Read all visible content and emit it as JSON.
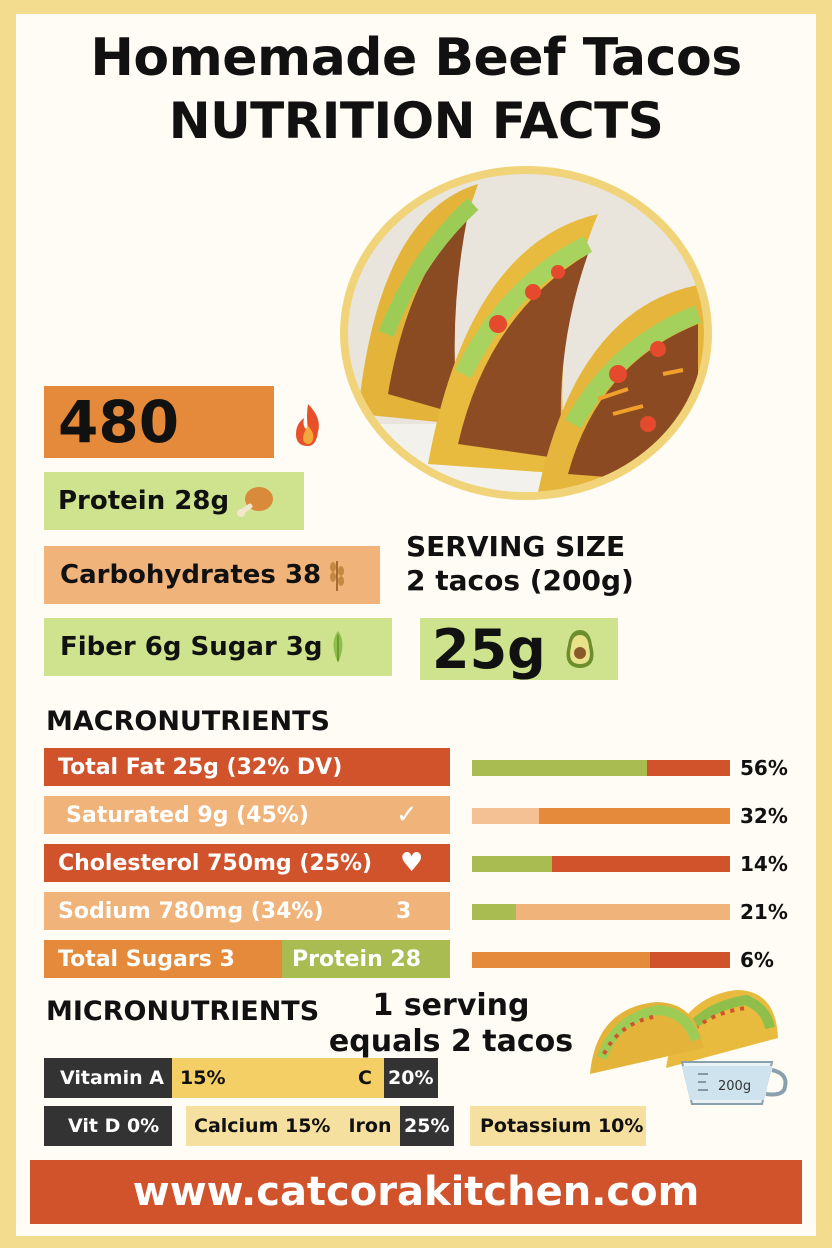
{
  "title": {
    "line1": "Homemade Beef Tacos",
    "line2": "NUTRITION FACTS"
  },
  "calories": {
    "value": "480",
    "icon": "flame-icon"
  },
  "protein": {
    "label": "Protein 28g",
    "icon": "drumstick-icon"
  },
  "carbs": {
    "label": "Carbohydrates 38",
    "icon": "wheat-icon"
  },
  "fiber": {
    "label": "Fiber 6g Sugar 3g",
    "icon": "leaf-icon"
  },
  "serving": {
    "heading": "SERVING SIZE",
    "value": "2 tacos (200g)"
  },
  "fat": {
    "value": "25g",
    "icon": "avocado-icon"
  },
  "macros": {
    "heading": "MACRONUTRIENTS",
    "rows": [
      {
        "label": "Total Fat 25g (32% DV)",
        "mark": "",
        "pct": "56%",
        "fill": 0.68
      },
      {
        "label": "Saturated 9g (45%)",
        "mark": "✓",
        "pct": "32%",
        "fill": 0.26
      },
      {
        "label": "Cholesterol 750mg (25%)",
        "mark": "♥",
        "pct": "14%",
        "fill": 0.31
      },
      {
        "label": "Sodium 780mg (34%)",
        "mark": "3",
        "pct": "21%",
        "fill": 0.17
      },
      {
        "label": "Total Sugars 3",
        "label2": "Protein 28",
        "pct": "6%",
        "fill": 0.69
      }
    ]
  },
  "micros": {
    "heading": "MICRONUTRIENTS",
    "vitamin_a": {
      "label": "Vitamin A",
      "value": "15%"
    },
    "vitamin_c": {
      "label": "C",
      "value": "20%"
    },
    "vitamin_d": {
      "label": "Vit D 0%"
    },
    "calcium": {
      "label": "Calcium 15%"
    },
    "iron": {
      "label": "Iron",
      "value": "25%"
    },
    "potassium": {
      "label": "Potassium 10%"
    }
  },
  "serving_note": {
    "line1": "1 serving",
    "line2": "equals 2 tacos",
    "cup_label": "200g"
  },
  "footer": {
    "url": "www.catcorakitchen.com"
  }
}
